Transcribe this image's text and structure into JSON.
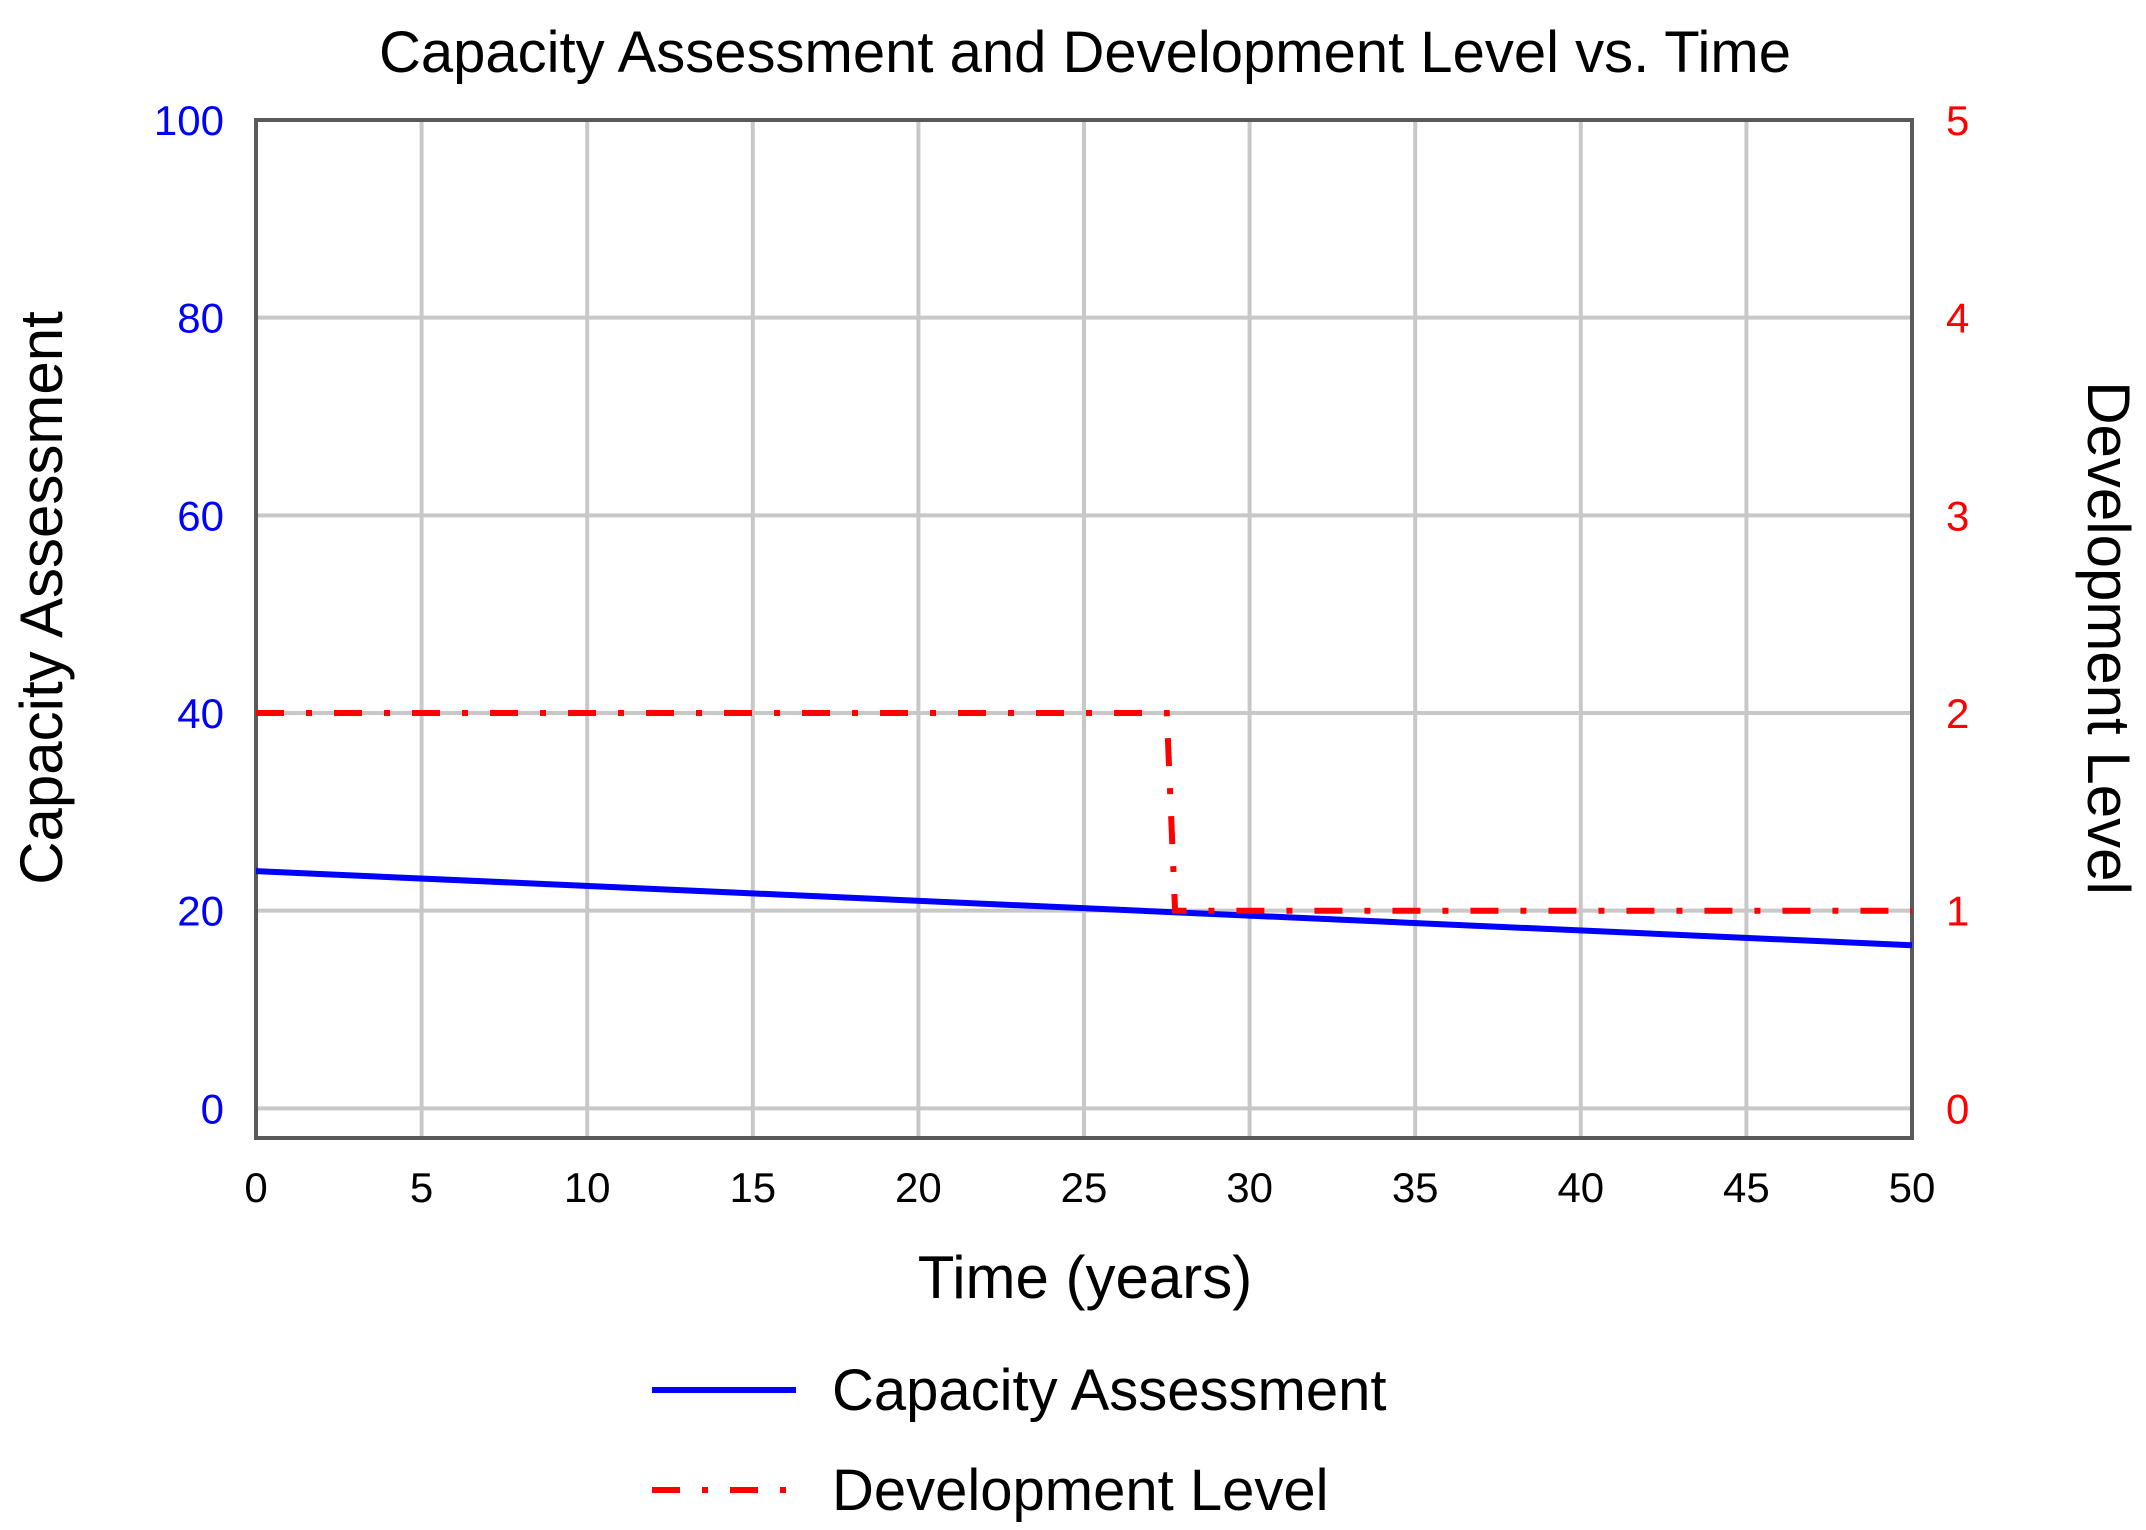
{
  "chart_data": {
    "type": "line",
    "title": "Capacity Assessment and Development Level vs. Time",
    "xlabel": "Time (years)",
    "ylabel_left": "Capacity Assessment",
    "ylabel_right": "Development Level",
    "xlim": [
      0,
      50
    ],
    "ylim_left": [
      -3,
      100
    ],
    "ylim_right": [
      -0.15,
      5
    ],
    "x_ticks": [
      "0",
      "5",
      "10",
      "15",
      "20",
      "25",
      "30",
      "35",
      "40",
      "45",
      "50"
    ],
    "y_left_ticks": [
      "0",
      "20",
      "40",
      "60",
      "80",
      "100"
    ],
    "y_right_ticks": [
      "0",
      "1",
      "2",
      "3",
      "4",
      "5"
    ],
    "grid": true,
    "legend_position": "bottom",
    "colors": {
      "left_axis": "#0000ff",
      "right_axis": "#ff0000",
      "grid": "#c8c8c8",
      "frame": "#595959"
    },
    "series": [
      {
        "name": "Capacity Assessment",
        "axis": "left",
        "style": "solid",
        "color": "#0000ff",
        "x": [
          0,
          50
        ],
        "y": [
          24,
          16.5
        ]
      },
      {
        "name": "Development Level",
        "axis": "right",
        "style": "dashdot",
        "color": "#ff0000",
        "x": [
          0,
          27.5,
          27.75,
          50
        ],
        "y": [
          2,
          2,
          1,
          1
        ]
      }
    ]
  }
}
